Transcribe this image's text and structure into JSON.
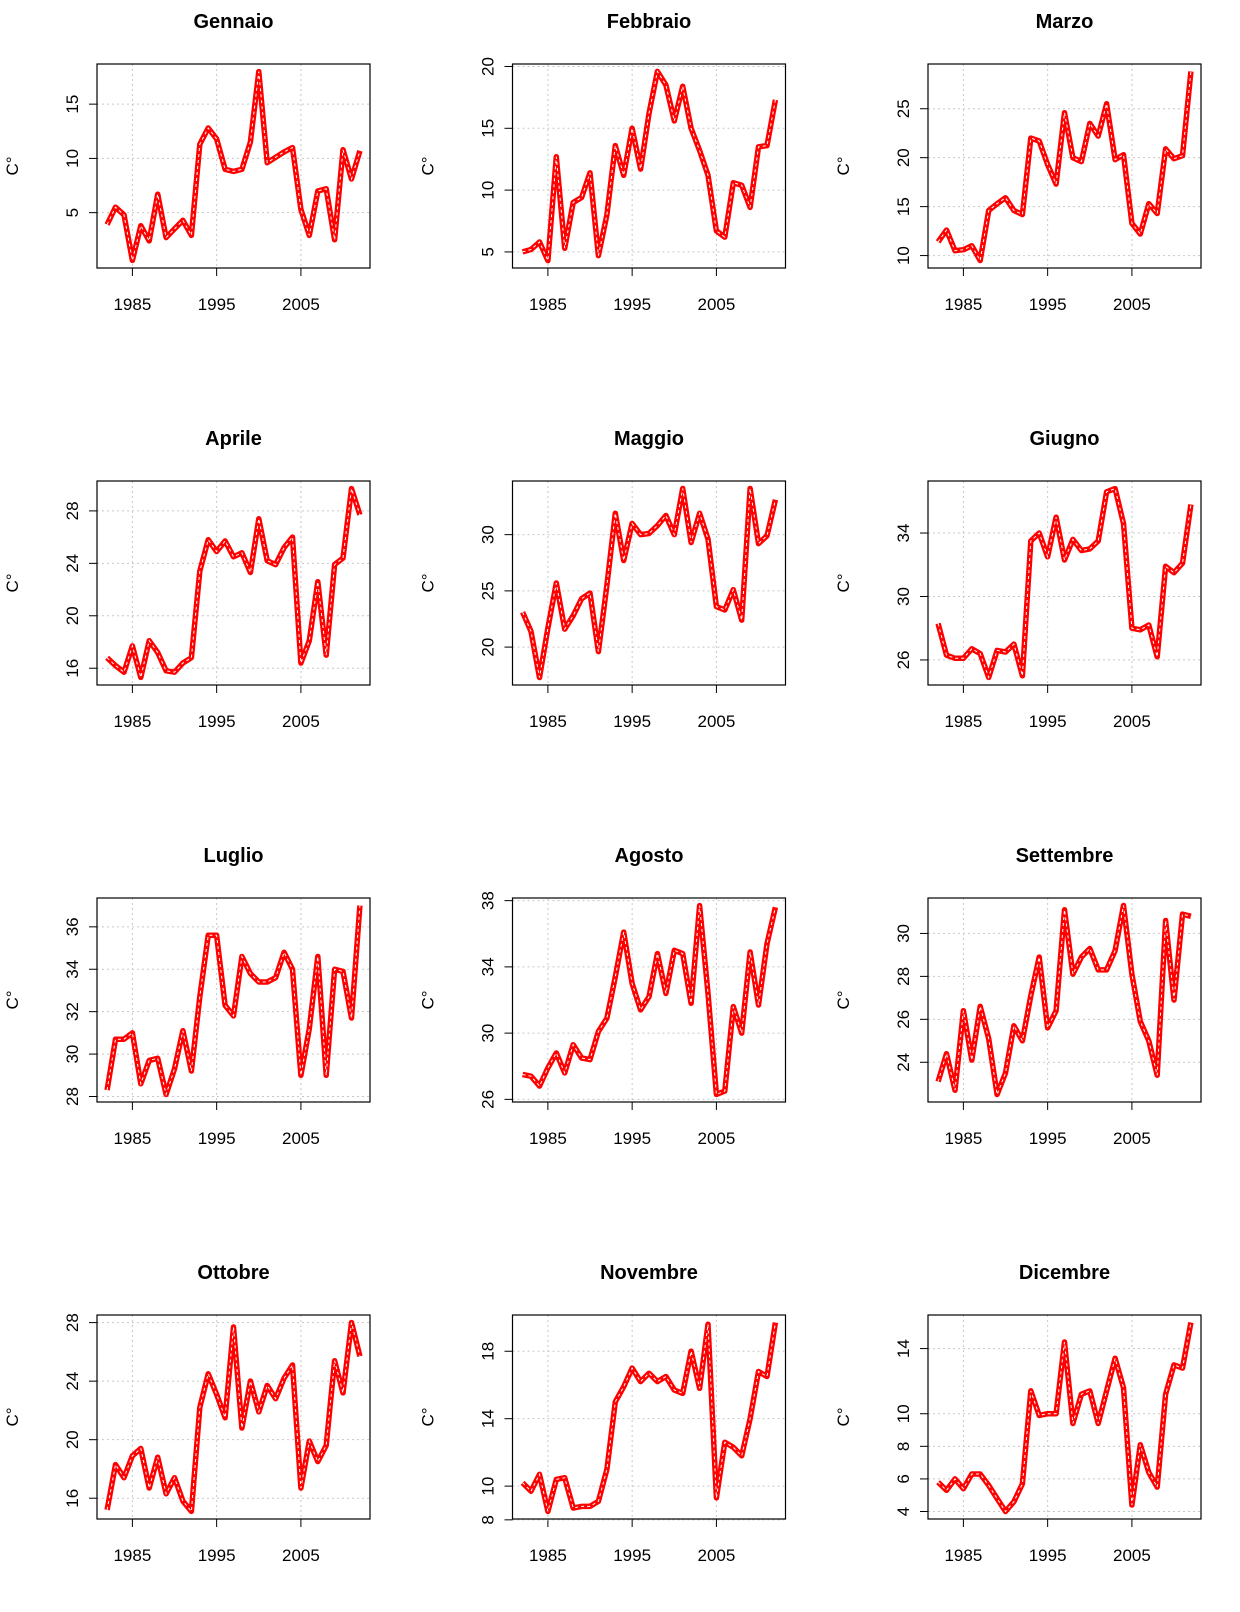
{
  "chart_data": [
    {
      "type": "line",
      "title": "Gennaio",
      "ylabel": "C°",
      "color": "red",
      "grid": true,
      "x": [
        1982,
        1983,
        1984,
        1985,
        1986,
        1987,
        1988,
        1989,
        1990,
        1991,
        1992,
        1993,
        1994,
        1995,
        1996,
        1997,
        1998,
        1999,
        2000,
        2001,
        2002,
        2003,
        2004,
        2005,
        2006,
        2007,
        2008,
        2009,
        2010,
        2011,
        2012
      ],
      "values": [
        3.9,
        5.5,
        4.8,
        0.6,
        3.8,
        2.4,
        6.7,
        2.7,
        3.5,
        4.3,
        2.9,
        11.3,
        12.8,
        11.8,
        9.0,
        8.8,
        9.0,
        11.5,
        18.0,
        9.6,
        10.1,
        10.6,
        11.0,
        5.3,
        2.9,
        7.0,
        7.2,
        2.5,
        10.8,
        8.1,
        10.7
      ],
      "xlim": [
        1980.8,
        2013.2
      ],
      "xticks": [
        1985,
        1995,
        2005
      ],
      "ylim": [
        -0.1,
        18.7
      ],
      "yticks": [
        5,
        10,
        15
      ]
    },
    {
      "type": "line",
      "title": "Febbraio",
      "ylabel": "C°",
      "color": "red",
      "grid": true,
      "x": [
        1982,
        1983,
        1984,
        1985,
        1986,
        1987,
        1988,
        1989,
        1990,
        1991,
        1992,
        1993,
        1994,
        1995,
        1996,
        1997,
        1998,
        1999,
        2000,
        2001,
        2002,
        2003,
        2004,
        2005,
        2006,
        2007,
        2008,
        2009,
        2010,
        2011,
        2012
      ],
      "values": [
        5.0,
        5.2,
        5.8,
        4.3,
        12.7,
        5.3,
        9.0,
        9.4,
        11.4,
        4.7,
        8.0,
        13.6,
        11.2,
        15.0,
        11.7,
        16.2,
        19.6,
        18.5,
        15.6,
        18.4,
        15.0,
        13.2,
        11.2,
        6.7,
        6.2,
        10.6,
        10.4,
        8.6,
        13.5,
        13.6,
        17.3
      ],
      "xlim": [
        1980.8,
        2013.2
      ],
      "xticks": [
        1985,
        1995,
        2005
      ],
      "ylim": [
        3.7,
        20.2
      ],
      "yticks": [
        5,
        10,
        15,
        20
      ]
    },
    {
      "type": "line",
      "title": "Marzo",
      "ylabel": "C°",
      "color": "red",
      "grid": true,
      "x": [
        1982,
        1983,
        1984,
        1985,
        1986,
        1987,
        1988,
        1989,
        1990,
        1991,
        1992,
        1993,
        1994,
        1995,
        1996,
        1997,
        1998,
        1999,
        2000,
        2001,
        2002,
        2003,
        2004,
        2005,
        2006,
        2007,
        2008,
        2009,
        2010,
        2011,
        2012
      ],
      "values": [
        11.4,
        12.6,
        10.5,
        10.6,
        11.0,
        9.5,
        14.6,
        15.3,
        15.9,
        14.6,
        14.2,
        22.0,
        21.7,
        19.3,
        17.3,
        24.6,
        20.0,
        19.6,
        23.5,
        22.2,
        25.5,
        19.8,
        20.3,
        13.3,
        12.2,
        15.3,
        14.3,
        20.9,
        19.9,
        20.2,
        28.8
      ],
      "xlim": [
        1980.8,
        2013.2
      ],
      "xticks": [
        1985,
        1995,
        2005
      ],
      "ylim": [
        8.73,
        29.57
      ],
      "yticks": [
        10,
        15,
        20,
        25
      ]
    },
    {
      "type": "line",
      "title": "Aprile",
      "ylabel": "C°",
      "color": "red",
      "grid": true,
      "x": [
        1982,
        1983,
        1984,
        1985,
        1986,
        1987,
        1988,
        1989,
        1990,
        1991,
        1992,
        1993,
        1994,
        1995,
        1996,
        1997,
        1998,
        1999,
        2000,
        2001,
        2002,
        2003,
        2004,
        2005,
        2006,
        2007,
        2008,
        2009,
        2010,
        2011,
        2012
      ],
      "values": [
        16.8,
        16.2,
        15.7,
        17.7,
        15.3,
        18.1,
        17.2,
        15.8,
        15.7,
        16.4,
        16.8,
        23.4,
        25.8,
        24.9,
        25.7,
        24.5,
        24.8,
        23.3,
        27.4,
        24.2,
        23.9,
        25.2,
        26.0,
        16.4,
        18.1,
        22.6,
        17.0,
        23.9,
        24.4,
        29.7,
        27.7
      ],
      "xlim": [
        1980.8,
        2013.2
      ],
      "xticks": [
        1985,
        1995,
        2005
      ],
      "ylim": [
        14.72,
        30.28
      ],
      "yticks": [
        16,
        20,
        24,
        28
      ]
    },
    {
      "type": "line",
      "title": "Maggio",
      "ylabel": "C°",
      "color": "red",
      "grid": true,
      "x": [
        1982,
        1983,
        1984,
        1985,
        1986,
        1987,
        1988,
        1989,
        1990,
        1991,
        1992,
        1993,
        1994,
        1995,
        1996,
        1997,
        1998,
        1999,
        2000,
        2001,
        2002,
        2003,
        2004,
        2005,
        2006,
        2007,
        2008,
        2009,
        2010,
        2011,
        2012
      ],
      "values": [
        23.1,
        21.4,
        17.3,
        21.7,
        25.7,
        21.6,
        22.8,
        24.3,
        24.8,
        19.6,
        25.5,
        31.9,
        27.7,
        31.0,
        30.0,
        30.1,
        30.8,
        31.7,
        30.0,
        34.1,
        29.3,
        31.9,
        29.6,
        23.6,
        23.3,
        25.1,
        22.4,
        34.1,
        29.2,
        29.9,
        33.1
      ],
      "xlim": [
        1980.8,
        2013.2
      ],
      "xticks": [
        1985,
        1995,
        2005
      ],
      "ylim": [
        16.63,
        34.77
      ],
      "yticks": [
        20,
        25,
        30
      ]
    },
    {
      "type": "line",
      "title": "Giugno",
      "ylabel": "C°",
      "color": "red",
      "grid": true,
      "x": [
        1982,
        1983,
        1984,
        1985,
        1986,
        1987,
        1988,
        1989,
        1990,
        1991,
        1992,
        1993,
        1994,
        1995,
        1996,
        1997,
        1998,
        1999,
        2000,
        2001,
        2002,
        2003,
        2004,
        2005,
        2006,
        2007,
        2008,
        2009,
        2010,
        2011,
        2012
      ],
      "values": [
        28.3,
        26.3,
        26.1,
        26.1,
        26.7,
        26.4,
        24.9,
        26.6,
        26.5,
        27.0,
        25.0,
        33.5,
        34.0,
        32.5,
        35.0,
        32.3,
        33.6,
        32.9,
        33.0,
        33.5,
        36.6,
        36.8,
        34.6,
        28.0,
        27.9,
        28.2,
        26.2,
        31.9,
        31.5,
        32.1,
        35.8
      ],
      "xlim": [
        1980.8,
        2013.2
      ],
      "xticks": [
        1985,
        1995,
        2005
      ],
      "ylim": [
        24.42,
        37.28
      ],
      "yticks": [
        26,
        30,
        34
      ]
    },
    {
      "type": "line",
      "title": "Luglio",
      "ylabel": "C°",
      "color": "red",
      "grid": true,
      "x": [
        1982,
        1983,
        1984,
        1985,
        1986,
        1987,
        1988,
        1989,
        1990,
        1991,
        1992,
        1993,
        1994,
        1995,
        1996,
        1997,
        1998,
        1999,
        2000,
        2001,
        2002,
        2003,
        2004,
        2005,
        2006,
        2007,
        2008,
        2009,
        2010,
        2011,
        2012
      ],
      "values": [
        28.3,
        30.7,
        30.7,
        31.0,
        28.6,
        29.7,
        29.8,
        28.1,
        29.3,
        31.1,
        29.2,
        32.7,
        35.6,
        35.6,
        32.3,
        31.8,
        34.6,
        33.8,
        33.4,
        33.4,
        33.6,
        34.8,
        34.0,
        29.0,
        31.2,
        34.6,
        29.0,
        34.0,
        33.9,
        31.7,
        37.0
      ],
      "xlim": [
        1980.8,
        2013.2
      ],
      "xticks": [
        1985,
        1995,
        2005
      ],
      "ylim": [
        27.74,
        37.36
      ],
      "yticks": [
        28,
        30,
        32,
        34,
        36
      ]
    },
    {
      "type": "line",
      "title": "Agosto",
      "ylabel": "C°",
      "color": "red",
      "grid": true,
      "x": [
        1982,
        1983,
        1984,
        1985,
        1986,
        1987,
        1988,
        1989,
        1990,
        1991,
        1992,
        1993,
        1994,
        1995,
        1996,
        1997,
        1998,
        1999,
        2000,
        2001,
        2002,
        2003,
        2004,
        2005,
        2006,
        2007,
        2008,
        2009,
        2010,
        2011,
        2012
      ],
      "values": [
        27.5,
        27.4,
        26.8,
        27.9,
        28.8,
        27.6,
        29.3,
        28.5,
        28.4,
        30.1,
        30.9,
        33.4,
        36.1,
        33.0,
        31.4,
        32.2,
        34.8,
        32.4,
        35.0,
        34.8,
        31.8,
        37.7,
        32.4,
        26.3,
        26.5,
        31.6,
        30.0,
        34.9,
        31.7,
        35.4,
        37.6
      ],
      "xlim": [
        1980.8,
        2013.2
      ],
      "xticks": [
        1985,
        1995,
        2005
      ],
      "ylim": [
        25.84,
        38.16
      ],
      "yticks": [
        26,
        30,
        34,
        38
      ]
    },
    {
      "type": "line",
      "title": "Settembre",
      "ylabel": "C°",
      "color": "red",
      "grid": true,
      "x": [
        1982,
        1983,
        1984,
        1985,
        1986,
        1987,
        1988,
        1989,
        1990,
        1991,
        1992,
        1993,
        1994,
        1995,
        1996,
        1997,
        1998,
        1999,
        2000,
        2001,
        2002,
        2003,
        2004,
        2005,
        2006,
        2007,
        2008,
        2009,
        2010,
        2011,
        2012
      ],
      "values": [
        23.1,
        24.4,
        22.7,
        26.4,
        24.1,
        26.6,
        25.1,
        22.5,
        23.5,
        25.7,
        25.0,
        27.1,
        28.9,
        25.6,
        26.4,
        31.1,
        28.1,
        28.9,
        29.3,
        28.3,
        28.3,
        29.2,
        31.3,
        28.1,
        25.9,
        25.0,
        23.4,
        30.6,
        26.9,
        30.9,
        30.8
      ],
      "xlim": [
        1980.8,
        2013.2
      ],
      "xticks": [
        1985,
        1995,
        2005
      ],
      "ylim": [
        22.15,
        31.65
      ],
      "yticks": [
        24,
        26,
        28,
        30
      ]
    },
    {
      "type": "line",
      "title": "Ottobre",
      "ylabel": "C°",
      "color": "red",
      "grid": true,
      "x": [
        1982,
        1983,
        1984,
        1985,
        1986,
        1987,
        1988,
        1989,
        1990,
        1991,
        1992,
        1993,
        1994,
        1995,
        1996,
        1997,
        1998,
        1999,
        2000,
        2001,
        2002,
        2003,
        2004,
        2005,
        2006,
        2007,
        2008,
        2009,
        2010,
        2011,
        2012
      ],
      "values": [
        15.2,
        18.3,
        17.4,
        18.9,
        19.4,
        16.7,
        18.8,
        16.3,
        17.4,
        15.8,
        15.1,
        22.2,
        24.5,
        23.1,
        21.5,
        27.7,
        20.8,
        24.0,
        21.9,
        23.7,
        22.8,
        24.2,
        25.1,
        16.7,
        19.9,
        18.5,
        19.6,
        25.4,
        23.2,
        28.0,
        25.7
      ],
      "xlim": [
        1980.8,
        2013.2
      ],
      "xticks": [
        1985,
        1995,
        2005
      ],
      "ylim": [
        14.58,
        28.52
      ],
      "yticks": [
        16,
        20,
        24,
        28
      ]
    },
    {
      "type": "line",
      "title": "Novembre",
      "ylabel": "C°",
      "color": "red",
      "grid": true,
      "x": [
        1982,
        1983,
        1984,
        1985,
        1986,
        1987,
        1988,
        1989,
        1990,
        1991,
        1992,
        1993,
        1994,
        1995,
        1996,
        1997,
        1998,
        1999,
        2000,
        2001,
        2002,
        2003,
        2004,
        2005,
        2006,
        2007,
        2008,
        2009,
        2010,
        2011,
        2012
      ],
      "values": [
        10.2,
        9.7,
        10.7,
        8.5,
        10.4,
        10.5,
        8.7,
        8.8,
        8.8,
        9.1,
        11.0,
        15.0,
        15.9,
        17.0,
        16.2,
        16.7,
        16.2,
        16.5,
        15.7,
        15.5,
        18.0,
        15.8,
        19.6,
        9.3,
        12.6,
        12.3,
        11.8,
        14.0,
        16.8,
        16.5,
        19.7
      ],
      "xlim": [
        1980.8,
        2013.2
      ],
      "xticks": [
        1985,
        1995,
        2005
      ],
      "ylim": [
        8.05,
        20.15
      ],
      "yticks": [
        8,
        10,
        14,
        18
      ]
    },
    {
      "type": "line",
      "title": "Dicembre",
      "ylabel": "C°",
      "color": "red",
      "grid": true,
      "x": [
        1982,
        1983,
        1984,
        1985,
        1986,
        1987,
        1988,
        1989,
        1990,
        1991,
        1992,
        1993,
        1994,
        1995,
        1996,
        1997,
        1998,
        1999,
        2000,
        2001,
        2002,
        2003,
        2004,
        2005,
        2006,
        2007,
        2008,
        2009,
        2010,
        2011,
        2012
      ],
      "values": [
        5.8,
        5.3,
        6.0,
        5.4,
        6.3,
        6.3,
        5.6,
        4.8,
        4.0,
        4.6,
        5.7,
        11.4,
        9.9,
        10.0,
        10.0,
        14.4,
        9.4,
        11.2,
        11.4,
        9.4,
        11.4,
        13.4,
        11.6,
        4.4,
        8.1,
        6.4,
        5.5,
        11.2,
        13.0,
        12.8,
        15.6
      ],
      "xlim": [
        1980.8,
        2013.2
      ],
      "xticks": [
        1985,
        1995,
        2005
      ],
      "ylim": [
        3.54,
        16.06
      ],
      "yticks": [
        4,
        6,
        8,
        10,
        14
      ]
    }
  ]
}
